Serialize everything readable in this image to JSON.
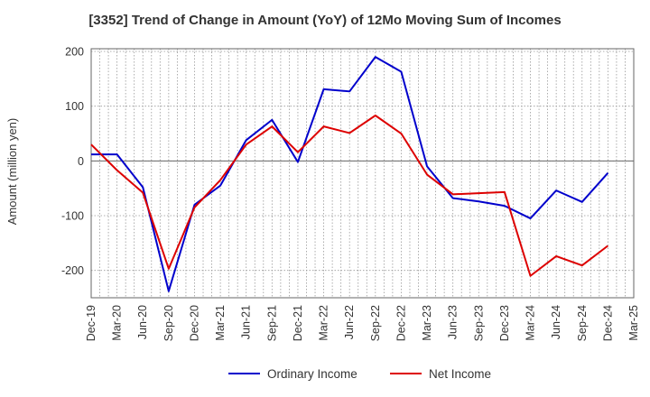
{
  "chart_data": {
    "type": "line",
    "title": "[3352]  Trend of Change in Amount (YoY) of 12Mo Moving Sum of Incomes",
    "ylabel": "Amount (million yen)",
    "xlabel": "",
    "ylim": [
      -250,
      205
    ],
    "yticks": [
      200,
      100,
      0,
      -100,
      -200
    ],
    "ytick_labels": [
      "200",
      "100",
      "0",
      "-100",
      "-200"
    ],
    "x_tick_labels": [
      "Dec-19",
      "Mar-20",
      "Jun-20",
      "Sep-20",
      "Dec-20",
      "Mar-21",
      "Jun-21",
      "Sep-21",
      "Dec-21",
      "Mar-22",
      "Jun-22",
      "Sep-22",
      "Dec-22",
      "Mar-23",
      "Jun-23",
      "Sep-23",
      "Dec-23",
      "Mar-24",
      "Jun-24",
      "Sep-24",
      "Dec-24",
      "Mar-25"
    ],
    "grid": true,
    "legend_position": "bottom",
    "series": [
      {
        "name": "Ordinary Income",
        "color": "#0000cc",
        "values": [
          12,
          12,
          -48,
          -238,
          -80,
          -45,
          38,
          75,
          -2,
          131,
          127,
          190,
          163,
          -10,
          -68,
          -74,
          -82,
          -105,
          -54,
          -75,
          -22
        ]
      },
      {
        "name": "Net Income",
        "color": "#dd0000",
        "values": [
          30,
          -17,
          -58,
          -197,
          -85,
          -35,
          30,
          63,
          16,
          63,
          51,
          83,
          50,
          -25,
          -61,
          -59,
          -57,
          -210,
          -174,
          -191,
          -155
        ]
      }
    ]
  }
}
